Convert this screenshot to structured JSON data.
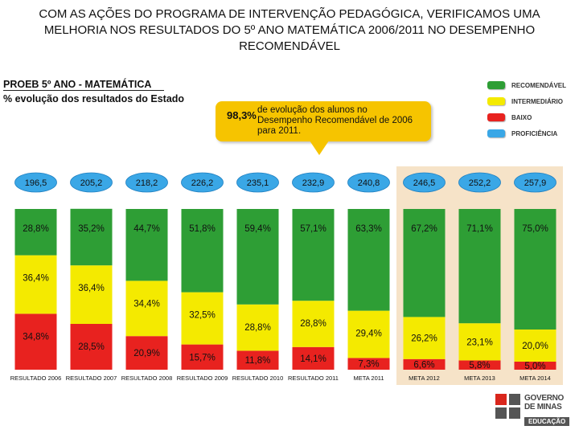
{
  "page": {
    "title": "COM AS AÇÕES DO PROGRAMA DE INTERVENÇÃO PEDAGÓGICA, VERIFICAMOS UMA MELHORIA NOS RESULTADOS DO 5º ANO MATEMÁTICA 2006/2011 NO DESEMPENHO RECOMENDÁVEL",
    "subtitle": "PROEB 5º ANO - MATEMÁTICA",
    "series_note": "% evolução dos resultados do Estado"
  },
  "callout": {
    "percent": "98,3%",
    "text": "de evolução dos alunos no Desempenho Recomendável de 2006 para 2011."
  },
  "legend": {
    "items": [
      {
        "label": "RECOMENDÁVEL",
        "color": "#2e9e35"
      },
      {
        "label": "INTERMEDIÁRIO",
        "color": "#f4ea00"
      },
      {
        "label": "BAIXO",
        "color": "#e8221f"
      },
      {
        "label": "PROFICIÊNCIA",
        "color": "#3aa7e6"
      }
    ]
  },
  "logo": {
    "name_line1": "GOVERNO",
    "name_line2": "DE MINAS",
    "dept": "EDUCAÇÃO"
  },
  "chart_data": {
    "type": "bar",
    "stacked": true,
    "title": "PROEB 5º ANO - MATEMÁTICA",
    "categories": [
      "RESULTADO 2006",
      "RESULTADO 2007",
      "RESULTADO 2008",
      "RESULTADO 2009",
      "RESULTADO 2010",
      "RESULTADO 2011",
      "META 2011",
      "META 2012",
      "META 2013",
      "META 2014"
    ],
    "series": [
      {
        "name": "BAIXO",
        "color": "#e8221f",
        "values": [
          34.8,
          28.5,
          20.9,
          15.7,
          11.8,
          14.1,
          7.3,
          6.6,
          5.8,
          5.0
        ],
        "labels": [
          "34,8%",
          "28,5%",
          "20,9%",
          "15,7%",
          "11,8%",
          "14,1%",
          "7,3%",
          "6,6%",
          "5,8%",
          "5,0%"
        ]
      },
      {
        "name": "INTERMEDIÁRIO",
        "color": "#f4ea00",
        "values": [
          36.4,
          36.4,
          34.4,
          32.5,
          28.8,
          28.8,
          29.4,
          26.2,
          23.1,
          20.0
        ],
        "labels": [
          "36,4%",
          "36,4%",
          "34,4%",
          "32,5%",
          "28,8%",
          "28,8%",
          "29,4%",
          "26,2%",
          "23,1%",
          "20,0%"
        ]
      },
      {
        "name": "RECOMENDÁVEL",
        "color": "#2e9e35",
        "values": [
          28.8,
          35.2,
          44.7,
          51.8,
          59.4,
          57.1,
          63.3,
          67.2,
          71.1,
          75.0
        ],
        "labels": [
          "28,8%",
          "35,2%",
          "44,7%",
          "51,8%",
          "59,4%",
          "57,1%",
          "63,3%",
          "67,2%",
          "71,1%",
          "75,0%"
        ]
      }
    ],
    "proficiency": {
      "name": "PROFICIÊNCIA",
      "color": "#3aa7e6",
      "values": [
        196.5,
        205.2,
        218.2,
        226.2,
        235.1,
        232.9,
        240.8,
        246.5,
        252.2,
        257.9
      ],
      "labels": [
        "196,5",
        "205,2",
        "218,2",
        "226,2",
        "235,1",
        "232,9",
        "240,8",
        "246,5",
        "252,2",
        "257,9"
      ]
    },
    "highlight_categories": [
      "META 2012",
      "META 2013",
      "META 2014"
    ],
    "highlight_color": "#f6e3c8",
    "ylim": [
      0,
      100
    ]
  }
}
